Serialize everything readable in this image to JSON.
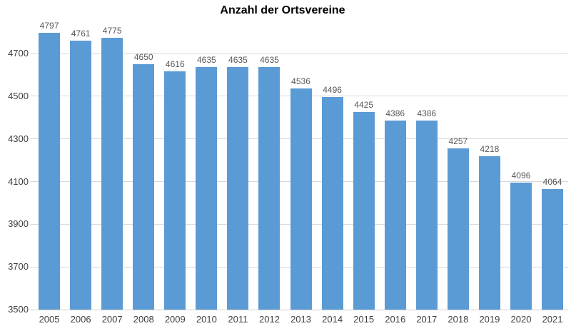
{
  "chart_data": {
    "type": "bar",
    "title": "Anzahl der Ortsvereine",
    "categories": [
      "2005",
      "2006",
      "2007",
      "2008",
      "2009",
      "2010",
      "2011",
      "2012",
      "2013",
      "2014",
      "2015",
      "2016",
      "2017",
      "2018",
      "2019",
      "2020",
      "2021"
    ],
    "values": [
      4797,
      4761,
      4775,
      4650,
      4616,
      4635,
      4635,
      4635,
      4536,
      4496,
      4425,
      4386,
      4386,
      4257,
      4218,
      4096,
      4064
    ],
    "xlabel": "",
    "ylabel": "",
    "yticks": [
      "4700",
      "4500",
      "4300",
      "4100",
      "3900",
      "3700",
      "3500"
    ],
    "ylim": [
      3500,
      4817
    ],
    "grid": "horizontal",
    "legend": "none",
    "colors": {
      "bar": "#5B9BD5",
      "gridline": "#D9D9D9",
      "axis_line": "#CFCFCF",
      "value_label": "#595959",
      "axis_label": "#404040",
      "title": "#000000"
    }
  }
}
